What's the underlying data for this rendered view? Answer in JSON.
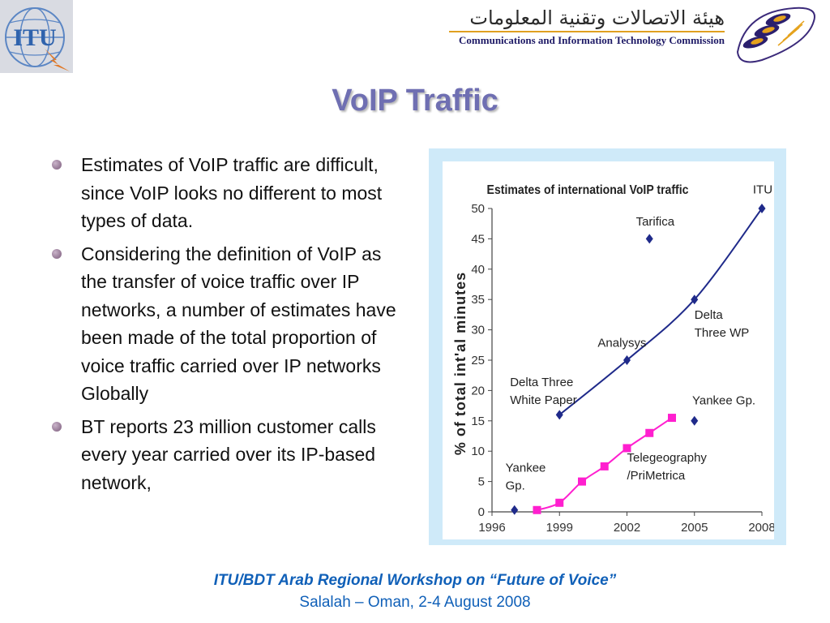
{
  "header": {
    "itu_logo_text": "ITU",
    "citc_arabic": "هيئة الاتصالات وتقنية المعلومات",
    "citc_english": "Communications and Information Technology Commission"
  },
  "title": "VoIP Traffic",
  "bullets": [
    "Estimates of VoIP traffic are difficult, since VoIP looks no different to most types of data.",
    "Considering the definition of VoIP as the transfer of voice traffic over IP networks, a number of estimates have been made of the total proportion of voice traffic carried over IP networks Globally",
    "BT reports 23 million customer calls every year carried over its IP-based network,"
  ],
  "footer": {
    "line1": "ITU/BDT Arab Regional Workshop on “Future of Voice”",
    "line2": "Salalah – Oman, 2-4 August 2008"
  },
  "colors": {
    "title": "#6f6fb2",
    "footer": "#1060b8",
    "series_navy": "#1f2a8a",
    "series_magenta": "#ff1fcf",
    "chart_frame": "#cfeaf9"
  },
  "chart_data": {
    "type": "scatter",
    "title": "Estimates of international VoIP traffic",
    "ylabel": "% of total int'al minutes",
    "xlabel": "",
    "xlim": [
      1996,
      2008
    ],
    "ylim": [
      0,
      50
    ],
    "xticks": [
      "1996",
      "1999",
      "2002",
      "2005",
      "2008"
    ],
    "yticks": [
      "0",
      "5",
      "10",
      "15",
      "20",
      "25",
      "30",
      "35",
      "40",
      "45",
      "50"
    ],
    "grid": false,
    "series": [
      {
        "color": "#1f2a8a",
        "marker": "diamond",
        "trend": true,
        "points": [
          [
            1999,
            16
          ],
          [
            2002,
            25
          ],
          [
            2005,
            35
          ],
          [
            2008,
            50
          ]
        ]
      },
      {
        "color": "#1f2a8a",
        "marker": "diamond",
        "trend": false,
        "points": [
          [
            1997,
            0.3
          ],
          [
            2003,
            45
          ],
          [
            2005,
            15
          ]
        ]
      },
      {
        "color": "#ff1fcf",
        "marker": "square",
        "trend": true,
        "points": [
          [
            1998,
            0.3
          ],
          [
            1999,
            1.5
          ],
          [
            2000,
            5
          ],
          [
            2001,
            7.5
          ],
          [
            2002,
            10.5
          ],
          [
            2003,
            13
          ],
          [
            2004,
            15.5
          ]
        ]
      }
    ],
    "annotations": [
      {
        "lines": [
          "ITU"
        ],
        "x": 2007.6,
        "y": 52.5
      },
      {
        "lines": [
          "Tarifica"
        ],
        "x": 2002.4,
        "y": 47.2
      },
      {
        "lines": [
          "Delta",
          "Three WP"
        ],
        "x": 2005.0,
        "y": 31.8
      },
      {
        "lines": [
          "Analysys"
        ],
        "x": 2000.7,
        "y": 27.2
      },
      {
        "lines": [
          "Delta Three",
          "White Paper"
        ],
        "x": 1996.8,
        "y": 20.7
      },
      {
        "lines": [
          "Yankee Gp."
        ],
        "x": 2004.9,
        "y": 17.7
      },
      {
        "lines": [
          "Telegeography",
          "/PriMetrica"
        ],
        "x": 2002.0,
        "y": 8.3
      },
      {
        "lines": [
          "Yankee",
          "Gp."
        ],
        "x": 1996.6,
        "y": 6.6
      }
    ]
  }
}
